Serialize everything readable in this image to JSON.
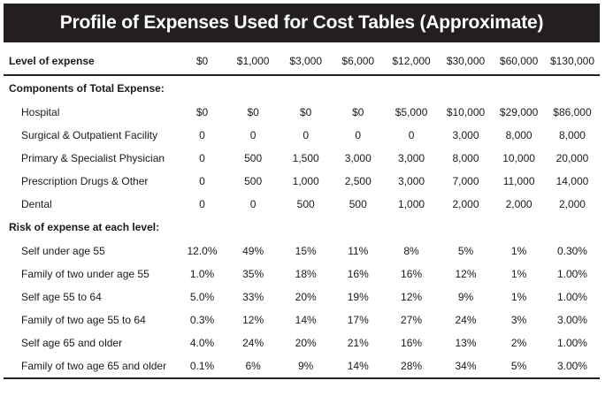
{
  "title": "Profile of Expenses Used for Cost Tables (Approximate)",
  "level_label": "Level of expense",
  "levels": [
    "$0",
    "$1,000",
    "$3,000",
    "$6,000",
    "$12,000",
    "$30,000",
    "$60,000",
    "$130,000"
  ],
  "components_heading": "Components of Total Expense:",
  "components": [
    {
      "label": "Hospital",
      "values": [
        "$0",
        "$0",
        "$0",
        "$0",
        "$5,000",
        "$10,000",
        "$29,000",
        "$86,000"
      ]
    },
    {
      "label": "Surgical & Outpatient Facility",
      "values": [
        "0",
        "0",
        "0",
        "0",
        "0",
        "3,000",
        "8,000",
        "8,000"
      ]
    },
    {
      "label": "Primary & Specialist Physician",
      "values": [
        "0",
        "500",
        "1,500",
        "3,000",
        "3,000",
        "8,000",
        "10,000",
        "20,000"
      ]
    },
    {
      "label": "Prescription Drugs & Other",
      "values": [
        "0",
        "500",
        "1,000",
        "2,500",
        "3,000",
        "7,000",
        "11,000",
        "14,000"
      ]
    },
    {
      "label": "Dental",
      "values": [
        "0",
        "0",
        "500",
        "500",
        "1,000",
        "2,000",
        "2,000",
        "2,000"
      ]
    }
  ],
  "risk_heading": "Risk of expense at each level:",
  "risks": [
    {
      "label": "Self under age 55",
      "values": [
        "12.0%",
        "49%",
        "15%",
        "11%",
        "8%",
        "5%",
        "1%",
        "0.30%"
      ]
    },
    {
      "label": "Family of two under age 55",
      "values": [
        "1.0%",
        "35%",
        "18%",
        "16%",
        "16%",
        "12%",
        "1%",
        "1.00%"
      ]
    },
    {
      "label": "Self age 55 to 64",
      "values": [
        "5.0%",
        "33%",
        "20%",
        "19%",
        "12%",
        "9%",
        "1%",
        "1.00%"
      ]
    },
    {
      "label": "Family of two age 55 to 64",
      "values": [
        "0.3%",
        "12%",
        "14%",
        "17%",
        "27%",
        "24%",
        "3%",
        "3.00%"
      ]
    },
    {
      "label": "Self age 65 and older",
      "values": [
        "4.0%",
        "24%",
        "20%",
        "21%",
        "16%",
        "13%",
        "2%",
        "1.00%"
      ]
    },
    {
      "label": "Family of two age 65 and older",
      "values": [
        "0.1%",
        "6%",
        "9%",
        "14%",
        "28%",
        "34%",
        "5%",
        "3.00%"
      ]
    }
  ]
}
